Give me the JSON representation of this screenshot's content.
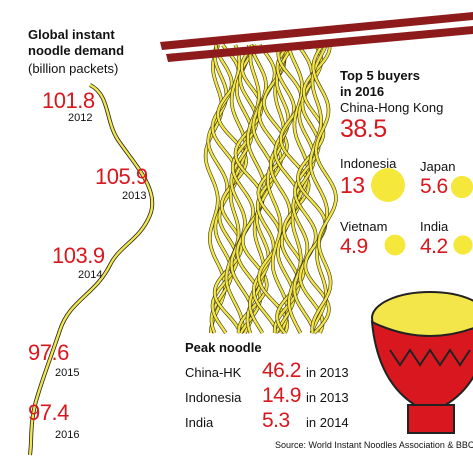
{
  "header": {
    "title": "Global instant noodle demand",
    "unit": "(billion packets)"
  },
  "demand": [
    {
      "value": 101.8,
      "year": 2012
    },
    {
      "value": 105.9,
      "year": 2013
    },
    {
      "value": 103.9,
      "year": 2014
    },
    {
      "value": 97.6,
      "year": 2015
    },
    {
      "value": 97.4,
      "year": 2016
    }
  ],
  "buyers": {
    "title": "Top 5 buyers in 2016",
    "items": [
      {
        "name": "China-Hong Kong",
        "value": 38.5
      },
      {
        "name": "Indonesia",
        "value": 13
      },
      {
        "name": "Japan",
        "value": 5.6
      },
      {
        "name": "Vietnam",
        "value": 4.9
      },
      {
        "name": "India",
        "value": 4.2
      }
    ]
  },
  "peak": {
    "title": "Peak noodle",
    "rows": [
      {
        "name": "China-HK",
        "value": 46.2,
        "note": "in 2013"
      },
      {
        "name": "Indonesia",
        "value": 14.9,
        "note": "in 2013"
      },
      {
        "name": "India",
        "value": 5.3,
        "note": "in 2014"
      }
    ]
  },
  "source": "Source: World Instant Noodles Association & BBC"
}
